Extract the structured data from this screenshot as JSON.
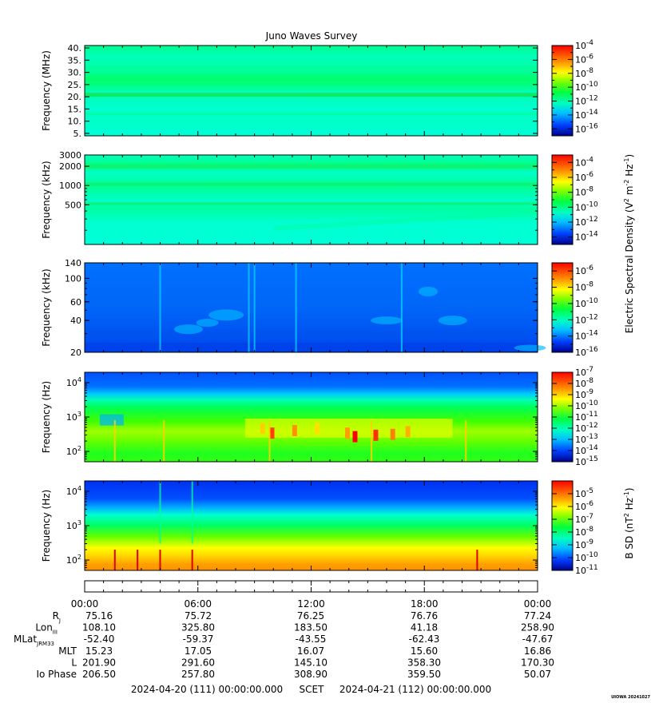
{
  "title": "Juno Waves Survey",
  "footer_tag": "UIOWA 20241027",
  "time_axis": {
    "tick_labels": [
      "00:00",
      "06:00",
      "12:00",
      "18:00",
      "00:00"
    ],
    "start_label": "2024-04-20 (111) 00:00:00.000",
    "scet_label": "SCET",
    "end_label": "2024-04-21 (112) 00:00:00.000"
  },
  "ephemeris": {
    "rows": [
      {
        "label": "R",
        "sub": "J",
        "values": [
          "75.16",
          "75.72",
          "76.25",
          "76.76",
          "77.24"
        ]
      },
      {
        "label": "Lon",
        "sub": "III",
        "values": [
          "108.10",
          "325.80",
          "183.50",
          "41.18",
          "258.90"
        ]
      },
      {
        "label": "MLat",
        "sub": "JRM33",
        "values": [
          "-52.40",
          "-59.37",
          "-43.55",
          "-62.43",
          "-47.67"
        ]
      },
      {
        "label": "MLT",
        "sub": "",
        "values": [
          "15.23",
          "17.05",
          "16.07",
          "15.60",
          "16.86"
        ]
      },
      {
        "label": "L",
        "sub": "",
        "values": [
          "201.90",
          "291.60",
          "145.10",
          "358.30",
          "170.30"
        ]
      },
      {
        "label": "Io Phase",
        "sub": "",
        "values": [
          "206.50",
          "257.80",
          "308.90",
          "359.50",
          "50.07"
        ]
      }
    ]
  },
  "colorbar_labels": {
    "electric": "Electric Spectral Density (V",
    "electric_parts": [
      "Electric Spectral Density (V",
      "2",
      " m",
      "-2",
      " Hz",
      "-1",
      ")"
    ],
    "magnetic_parts": [
      "B SD (nT",
      "2",
      " Hz",
      "-1",
      ")"
    ]
  },
  "chart_data": [
    {
      "type": "heatmap",
      "name": "panel-1",
      "ylabel": "Frequency (MHz)",
      "yscale": "linear",
      "ylim": [
        4,
        41
      ],
      "yticks": [
        5,
        10,
        15,
        20,
        25,
        30,
        35,
        40
      ],
      "ytick_labels": [
        "5.",
        "10.",
        "15.",
        "20.",
        "25.",
        "30.",
        "35.",
        "40."
      ],
      "colorbar": {
        "scale": "log",
        "range_exp": [
          -17,
          -4
        ],
        "major_exps": [
          -4,
          -6,
          -8,
          -10,
          -12,
          -14,
          -16
        ]
      },
      "background_level_exp": -12.5,
      "bands": [
        {
          "y": 20.8,
          "level_exp": -11.2,
          "width": 1.6
        },
        {
          "y": 26.0,
          "level_exp": -12.1,
          "width": 1.0
        },
        {
          "y": 32.0,
          "level_exp": -12.1,
          "width": 1.0
        },
        {
          "y": 13.0,
          "level_exp": -12.2,
          "width": 1.2
        }
      ]
    },
    {
      "type": "heatmap",
      "name": "panel-2",
      "ylabel": "Frequency (kHz)",
      "yscale": "log",
      "ylim": [
        120,
        3000
      ],
      "yticks": [
        500,
        1000,
        2000,
        3000
      ],
      "ytick_labels": [
        "500",
        "1000",
        "2000",
        "3000"
      ],
      "colorbar": {
        "scale": "log",
        "range_exp": [
          -15,
          -3
        ],
        "major_exps": [
          -4,
          -6,
          -8,
          -10,
          -12,
          -14
        ]
      },
      "background_level_exp": -12.3,
      "bands": [
        {
          "y": 2000,
          "level_exp": -11.3,
          "width": 0.06
        },
        {
          "y": 1050,
          "level_exp": -11.5,
          "width": 0.05
        },
        {
          "y": 520,
          "level_exp": -11.9,
          "width": 0.04
        }
      ]
    },
    {
      "type": "heatmap",
      "name": "panel-3",
      "ylabel": "Frequency (kHz)",
      "yscale": "log",
      "ylim": [
        20,
        140
      ],
      "yticks": [
        20,
        40,
        60,
        100,
        140
      ],
      "ytick_labels": [
        "20",
        "40",
        "60",
        "100",
        "140"
      ],
      "colorbar": {
        "scale": "log",
        "range_exp": [
          -16,
          -5
        ],
        "major_exps": [
          -6,
          -8,
          -10,
          -12,
          -14,
          -16
        ]
      },
      "background_level_exp": -14.5,
      "spikes_hours": [
        4.0,
        8.7,
        9.0,
        11.2,
        16.8
      ]
    },
    {
      "type": "heatmap",
      "name": "panel-4",
      "ylabel": "Frequency (Hz)",
      "yscale": "log",
      "ylim": [
        50,
        20000
      ],
      "yticks": [
        100,
        1000,
        10000
      ],
      "ytick_labels": [
        "10^2",
        "10^3",
        "10^4"
      ],
      "colorbar": {
        "scale": "log",
        "range_exp": [
          -15,
          -7
        ],
        "major_exps": [
          -7,
          -8,
          -9,
          -10,
          -11,
          -12,
          -13,
          -14,
          -15
        ]
      },
      "upper_band_top_hz": 3000,
      "hot_band_hz": [
        250,
        900
      ],
      "spikes_hours": [
        1.6,
        4.2,
        9.8,
        15.2,
        20.2
      ]
    },
    {
      "type": "heatmap",
      "name": "panel-5",
      "ylabel": "Frequency (Hz)",
      "yscale": "log",
      "ylim": [
        50,
        20000
      ],
      "yticks": [
        100,
        1000,
        10000
      ],
      "ytick_labels": [
        "10^2",
        "10^3",
        "10^4"
      ],
      "colorbar": {
        "scale": "log",
        "range_exp": [
          -11,
          -4
        ],
        "major_exps": [
          -5,
          -6,
          -7,
          -8,
          -9,
          -10,
          -11
        ]
      },
      "spikes_hours": [
        1.6,
        2.8,
        4.0,
        5.7,
        20.8
      ]
    }
  ]
}
